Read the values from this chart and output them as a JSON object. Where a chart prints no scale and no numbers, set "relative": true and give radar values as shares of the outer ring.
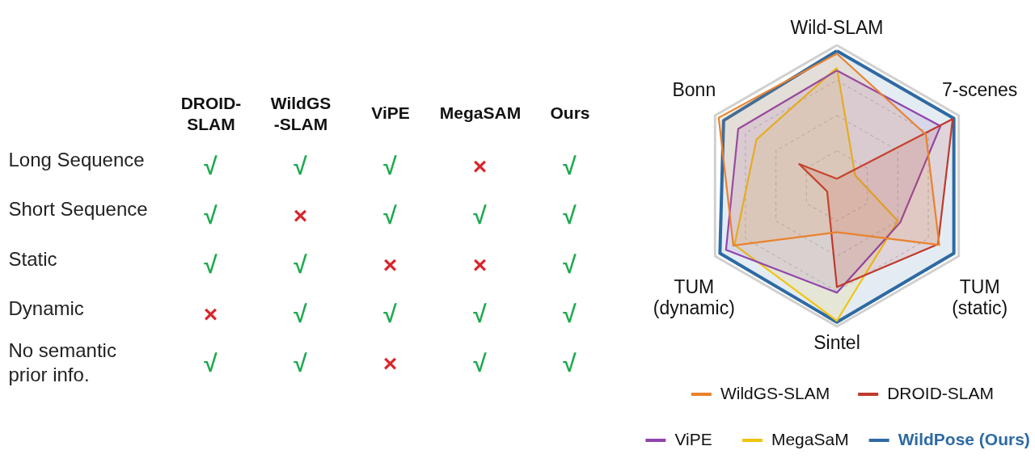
{
  "chart_data": [
    {
      "type": "heatmap",
      "categories": [
        "DROID-\nSLAM",
        "WildGS\n-SLAM",
        "ViPE",
        "MegaSAM",
        "Ours"
      ],
      "y_categories": [
        "Long Sequence",
        "Short Sequence",
        "Static",
        "Dynamic",
        "No semantic\nprior info."
      ],
      "cells": [
        [
          null,
          null,
          null,
          null,
          null
        ],
        [
          null,
          null,
          null,
          null,
          null
        ],
        [
          null,
          null,
          null,
          null,
          null
        ],
        [
          null,
          null,
          null,
          null,
          null
        ],
        [
          null,
          null,
          null,
          null,
          null
        ]
      ],
      "cell_labels": [
        [
          "√",
          "√",
          "√",
          "×",
          "√"
        ],
        [
          "√",
          "×",
          "√",
          "√",
          "√"
        ],
        [
          "√",
          "√",
          "×",
          "×",
          "√"
        ],
        [
          "×",
          "√",
          "√",
          "√",
          "√"
        ],
        [
          "√",
          "√",
          "×",
          "√",
          "√"
        ]
      ],
      "colors": [
        [
          "#1faa4f",
          "#1faa4f",
          "#1faa4f",
          "#d9262c",
          "#1faa4f"
        ],
        [
          "#1faa4f",
          "#d9262c",
          "#1faa4f",
          "#1faa4f",
          "#1faa4f"
        ],
        [
          "#1faa4f",
          "#1faa4f",
          "#d9262c",
          "#d9262c",
          "#1faa4f"
        ],
        [
          "#d9262c",
          "#1faa4f",
          "#1faa4f",
          "#1faa4f",
          "#1faa4f"
        ],
        [
          "#1faa4f",
          "#1faa4f",
          "#d9262c",
          "#1faa4f",
          "#1faa4f"
        ]
      ]
    },
    {
      "type": "radar",
      "relative": true,
      "grid": true,
      "legend": "bottom",
      "categories": [
        "Wild-SLAM",
        "7-scenes",
        "TUM\n(static)",
        "Sintel",
        "TUM\n(dynamic)",
        "Bonn"
      ],
      "series": [
        {
          "name": "WildGS-SLAM",
          "color": "#e8822e",
          "values": [
            0.94,
            0.73,
            0.84,
            0.33,
            0.85,
            0.97
          ]
        },
        {
          "name": "DROID-SLAM",
          "color": "#c0392b",
          "values": [
            0.05,
            0.95,
            0.83,
            0.72,
            0.08,
            0.31
          ]
        },
        {
          "name": "ViPE",
          "color": "#8e44ad",
          "values": [
            0.82,
            0.85,
            0.52,
            0.76,
            0.91,
            0.81
          ]
        },
        {
          "name": "MegaSaM",
          "color": "#f1c40f",
          "values": [
            0.84,
            0.15,
            0.5,
            0.96,
            0.84,
            0.66
          ]
        },
        {
          "name": "WildPose (Ours)",
          "color": "#2e6aa3",
          "values": [
            0.96,
            0.96,
            0.96,
            0.97,
            0.96,
            0.93
          ]
        }
      ]
    }
  ]
}
